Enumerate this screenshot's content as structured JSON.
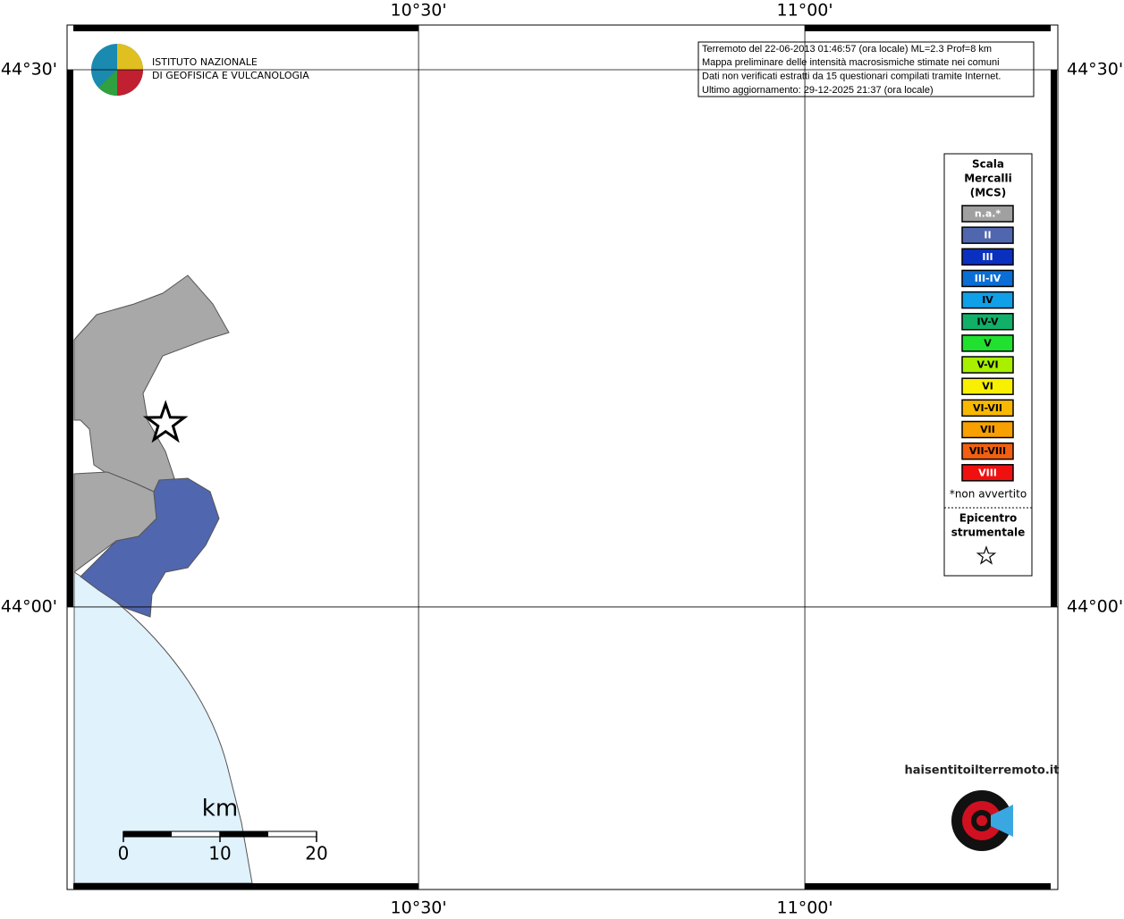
{
  "header": {
    "logo_lines": [
      "ISTITUTO NAZIONALE",
      "DI GEOFISICA E VULCANOLOGIA"
    ]
  },
  "info_box": [
    "Terremoto del 22-06-2013 01:46:57 (ora locale) ML=2.3 Prof=8 km",
    "Mappa preliminare delle intensità macrosismiche stimate nei comuni",
    "Dati non verificati estratti da 15 questionari compilati tramite Internet.",
    "Ultimo aggiornamento: 29-12-2025 21:37 (ora locale)"
  ],
  "map": {
    "xlim": [
      10.045,
      11.3275
    ],
    "ylim": [
      43.737,
      44.5416
    ],
    "xticks": [
      {
        "value": 10.5,
        "label": "10°30'"
      },
      {
        "value": 11.0,
        "label": "11°00'"
      }
    ],
    "yticks": [
      {
        "value": 44.5,
        "label": "44°30'"
      },
      {
        "value": 44.0,
        "label": "44°00'"
      }
    ],
    "epicenter": [
      10.1725,
      44.1706
    ]
  },
  "legend": {
    "title_lines": [
      "Scala",
      "Mercalli",
      "(MCS)"
    ],
    "items": [
      {
        "label": "n.a.*",
        "color": "#a0a0a0"
      },
      {
        "label": "II",
        "color": "#5066ae"
      },
      {
        "label": "III",
        "color": "#0a30c0"
      },
      {
        "label": "III-IV",
        "color": "#0a6ed6"
      },
      {
        "label": "IV",
        "color": "#10a0e8"
      },
      {
        "label": "IV-V",
        "color": "#10b068"
      },
      {
        "label": "V",
        "color": "#20e030"
      },
      {
        "label": "V-VI",
        "color": "#a8f000"
      },
      {
        "label": "VI",
        "color": "#f8f000"
      },
      {
        "label": "VI-VII",
        "color": "#f8b800"
      },
      {
        "label": "VII",
        "color": "#f8a000"
      },
      {
        "label": "VII-VIII",
        "color": "#f06010"
      },
      {
        "label": "VIII",
        "color": "#f01010"
      }
    ],
    "note": "*non avvertito",
    "epicenter_lines": [
      "Epicentro",
      "strumentale"
    ]
  },
  "scale_bar": {
    "unit": "km",
    "ticks": [
      0,
      10,
      20
    ]
  },
  "watermark": "haisentitoilterremoto.it"
}
